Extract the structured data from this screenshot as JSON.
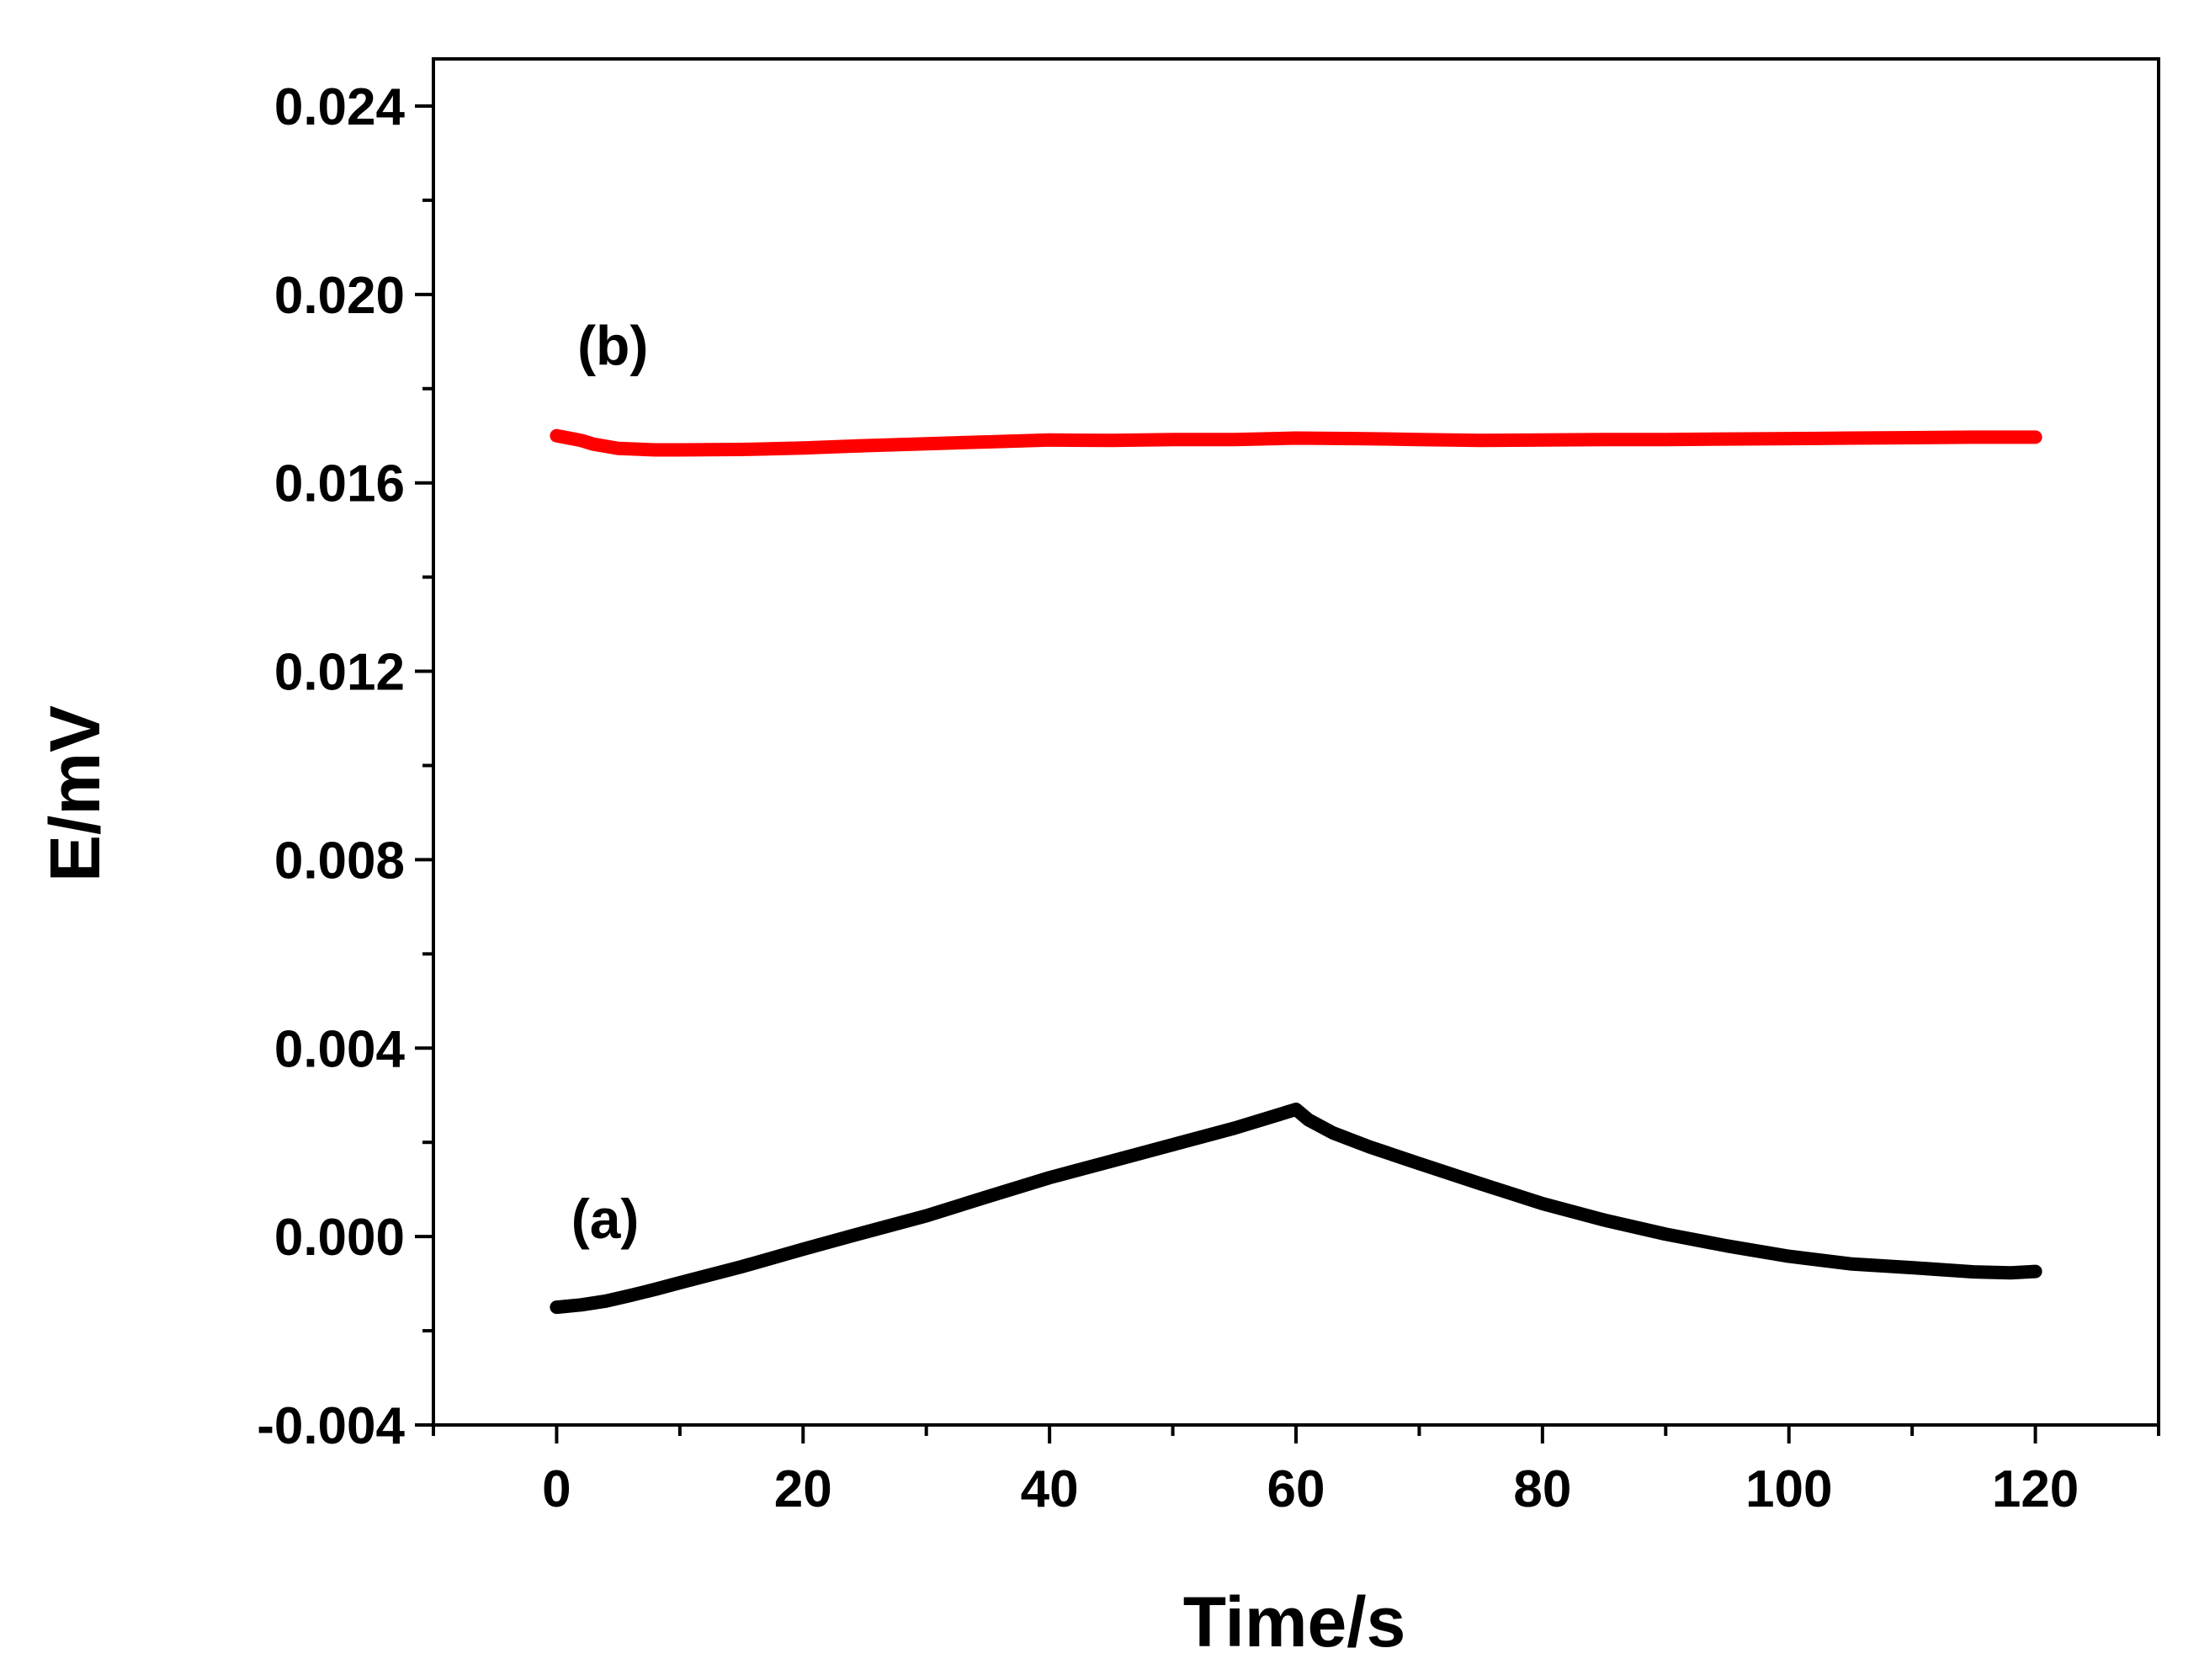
{
  "chart_data": {
    "type": "line",
    "title": "",
    "xlabel": "Time/s",
    "ylabel": "E/mV",
    "xlim": [
      -10,
      130
    ],
    "ylim": [
      -0.004,
      0.025
    ],
    "x_ticks": [
      0,
      20,
      40,
      60,
      80,
      100,
      120
    ],
    "x_tick_labels": [
      "0",
      "20",
      "40",
      "60",
      "80",
      "100",
      "120"
    ],
    "y_ticks": [
      -0.004,
      0.0,
      0.004,
      0.008,
      0.012,
      0.016,
      0.02,
      0.024
    ],
    "y_tick_labels": [
      "-0.004",
      "0.000",
      "0.004",
      "0.008",
      "0.012",
      "0.016",
      "0.020",
      "0.024"
    ],
    "grid": false,
    "series": [
      {
        "name": "(a)",
        "color": "#000000",
        "label_position": {
          "x": 0.5,
          "y": 0.00036
        },
        "x": [
          0,
          2,
          4,
          6,
          8,
          10,
          15,
          20,
          25,
          30,
          35,
          40,
          45,
          50,
          55,
          59,
          60,
          61,
          63,
          66,
          70,
          75,
          80,
          85,
          90,
          95,
          100,
          105,
          110,
          115,
          118,
          120
        ],
        "y": [
          -0.0015,
          -0.00145,
          -0.00137,
          -0.00125,
          -0.00112,
          -0.00098,
          -0.00064,
          -0.00027,
          9e-05,
          0.00044,
          0.00085,
          0.00125,
          0.0016,
          0.00195,
          0.0023,
          0.00262,
          0.0027,
          0.00248,
          0.0022,
          0.0019,
          0.00155,
          0.00112,
          0.0007,
          0.00035,
          5e-05,
          -0.0002,
          -0.00042,
          -0.00058,
          -0.00066,
          -0.00075,
          -0.00077,
          -0.00074
        ]
      },
      {
        "name": "(b)",
        "color": "#ff0000",
        "label_position": {
          "x": 1.0,
          "y": 0.0189
        },
        "x": [
          0,
          1,
          2,
          3,
          5,
          8,
          10,
          15,
          20,
          25,
          30,
          35,
          40,
          45,
          50,
          55,
          60,
          65,
          70,
          75,
          80,
          85,
          90,
          95,
          100,
          105,
          110,
          115,
          120
        ],
        "y": [
          0.017,
          0.01695,
          0.0169,
          0.01682,
          0.01673,
          0.0167,
          0.0167,
          0.01671,
          0.01674,
          0.01679,
          0.01683,
          0.01687,
          0.01691,
          0.0169,
          0.01692,
          0.01692,
          0.01695,
          0.01694,
          0.01692,
          0.0169,
          0.01691,
          0.01692,
          0.01692,
          0.01693,
          0.01694,
          0.01695,
          0.01696,
          0.01697,
          0.01697
        ]
      }
    ]
  }
}
